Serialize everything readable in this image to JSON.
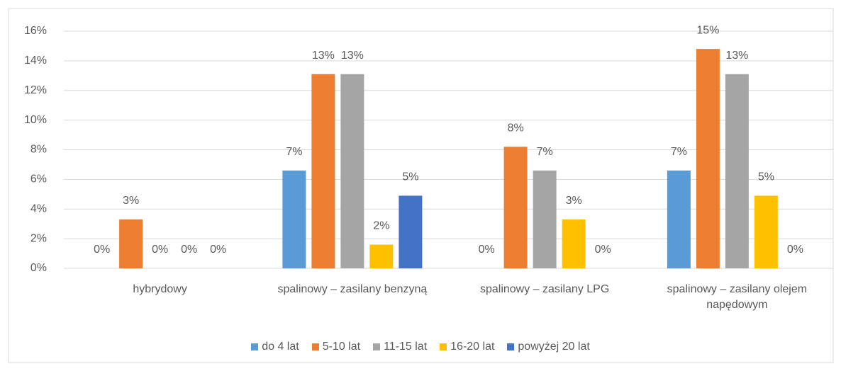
{
  "chart_data": {
    "type": "bar",
    "categories": [
      "hybrydowy",
      "spalinowy – zasilany benzyną",
      "spalinowy – zasilany LPG",
      "spalinowy – zasilany olejem napędowym"
    ],
    "series": [
      {
        "name": "do 4 lat",
        "color": "#5b9bd5",
        "values": [
          0,
          6.6,
          0,
          6.6
        ],
        "value_labels": [
          "0%",
          "7%",
          "0%",
          "7%"
        ]
      },
      {
        "name": "5-10 lat",
        "color": "#ed7d31",
        "values": [
          3.3,
          13.1,
          8.2,
          14.8
        ],
        "value_labels": [
          "3%",
          "13%",
          "8%",
          "15%"
        ]
      },
      {
        "name": "11-15 lat",
        "color": "#a5a5a5",
        "values": [
          0,
          13.1,
          6.6,
          13.1
        ],
        "value_labels": [
          "0%",
          "13%",
          "7%",
          "13%"
        ]
      },
      {
        "name": "16-20 lat",
        "color": "#ffc000",
        "values": [
          0,
          1.6,
          3.3,
          4.9
        ],
        "value_labels": [
          "0%",
          "2%",
          "3%",
          "5%"
        ]
      },
      {
        "name": "powyżej 20 lat",
        "color": "#4472c4",
        "values": [
          0,
          4.9,
          0,
          0
        ],
        "value_labels": [
          "0%",
          "5%",
          "0%",
          "0%"
        ]
      }
    ],
    "ylim": [
      0,
      16
    ],
    "yticks": [
      {
        "value": 0,
        "label": "0%"
      },
      {
        "value": 2,
        "label": "2%"
      },
      {
        "value": 4,
        "label": "4%"
      },
      {
        "value": 6,
        "label": "6%"
      },
      {
        "value": 8,
        "label": "8%"
      },
      {
        "value": 10,
        "label": "10%"
      },
      {
        "value": 12,
        "label": "12%"
      },
      {
        "value": 14,
        "label": "14%"
      },
      {
        "value": 16,
        "label": "16%"
      }
    ],
    "grid": true,
    "legend": "bottom"
  }
}
